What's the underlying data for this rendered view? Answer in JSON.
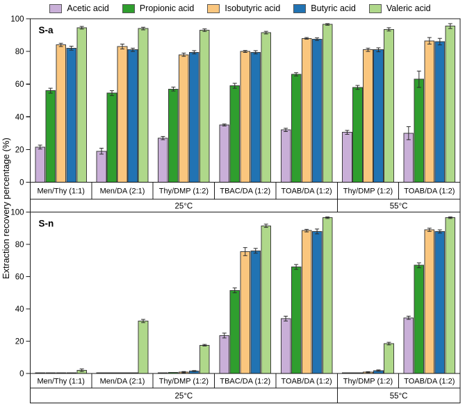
{
  "y_axis": {
    "label": "Extraction recovery percentage (%)",
    "ticks": [
      0,
      20,
      40,
      60,
      80,
      100
    ],
    "ylim": [
      0,
      100
    ]
  },
  "legend": {
    "items": [
      {
        "label": "Acetic acid",
        "color": "#c9afd8"
      },
      {
        "label": "Propionic acid",
        "color": "#2f9e2e"
      },
      {
        "label": "Isobutyric acid",
        "color": "#fac67e"
      },
      {
        "label": "Butyric acid",
        "color": "#2173b3"
      },
      {
        "label": "Valeric acid",
        "color": "#afd88a"
      }
    ]
  },
  "styles": {
    "bar_stroke": "#3c3c3c",
    "frame": "#1a1a1a",
    "error": "#2b2b2b",
    "background": "#ffffff"
  },
  "chart_data": [
    {
      "type": "bar",
      "panel_label": "S-a",
      "ylabel": "Extraction recovery percentage (%)",
      "ylim": [
        0,
        100
      ],
      "grid": false,
      "legend_position": "top",
      "categories": [
        "Men/Thy (1:1)",
        "Men/DA (2:1)",
        "Thy/DMP (1:2)",
        "TBAC/DA (1:2)",
        "TOAB/DA (1:2)",
        "Thy/DMP (1:2)",
        "TOAB/DA (1:2)"
      ],
      "temperature_sections": [
        {
          "label": "25°C",
          "span": 5
        },
        {
          "label": "55°C",
          "span": 2
        }
      ],
      "series": [
        {
          "name": "Acetic acid",
          "values": [
            21.5,
            19,
            27,
            35,
            32,
            30.5,
            30
          ],
          "errors": [
            1.2,
            1.8,
            1,
            0.6,
            1,
            1.2,
            4
          ]
        },
        {
          "name": "Propionic acid",
          "values": [
            56,
            54.5,
            57,
            59,
            66,
            58,
            63
          ],
          "errors": [
            1.5,
            1.5,
            1.2,
            1.5,
            1,
            1.2,
            5
          ]
        },
        {
          "name": "Isobutyric acid",
          "values": [
            84,
            83,
            78,
            80,
            88,
            81,
            86.5
          ],
          "errors": [
            1,
            1.5,
            1,
            0.6,
            0.5,
            1,
            2
          ]
        },
        {
          "name": "Butyric acid",
          "values": [
            82,
            81,
            79.5,
            79.5,
            87.5,
            81,
            86
          ],
          "errors": [
            1.2,
            1,
            1,
            1,
            0.8,
            1.2,
            2
          ]
        },
        {
          "name": "Valeric acid",
          "values": [
            94.5,
            94,
            93,
            91.5,
            96.5,
            93.5,
            95.5
          ],
          "errors": [
            0.8,
            0.8,
            0.8,
            0.8,
            0.5,
            1,
            1.5
          ]
        }
      ]
    },
    {
      "type": "bar",
      "panel_label": "S-n",
      "ylabel": "Extraction recovery percentage (%)",
      "ylim": [
        0,
        100
      ],
      "grid": false,
      "legend_position": "top",
      "categories": [
        "Men/Thy (1:1)",
        "Men/DA (2:1)",
        "Thy/DMP (1:2)",
        "TBAC/DA (1:2)",
        "TOAB/DA (1:2)",
        "Thy/DMP (1:2)",
        "TOAB/DA (1:2)"
      ],
      "temperature_sections": [
        {
          "label": "25°C",
          "span": 5
        },
        {
          "label": "55°C",
          "span": 2
        }
      ],
      "series": [
        {
          "name": "Acetic acid",
          "values": [
            0.5,
            0.4,
            0.5,
            23.5,
            34,
            0.5,
            34.5
          ],
          "errors": [
            0.1,
            0.1,
            0.2,
            1.5,
            1.5,
            0.2,
            1
          ]
        },
        {
          "name": "Propionic acid",
          "values": [
            0.5,
            0.4,
            0.7,
            51.5,
            66,
            0.5,
            67
          ],
          "errors": [
            0.1,
            0.1,
            0.2,
            1.5,
            1.5,
            0.2,
            1.5
          ]
        },
        {
          "name": "Isobutyric acid",
          "values": [
            0.5,
            0.4,
            0.8,
            75.5,
            88.5,
            0.8,
            89
          ],
          "errors": [
            0.1,
            0.1,
            0.4,
            2.5,
            0.8,
            0.3,
            1
          ]
        },
        {
          "name": "Butyric acid",
          "values": [
            0.5,
            0.5,
            1.5,
            76,
            88,
            1.8,
            88
          ],
          "errors": [
            0.1,
            0.1,
            0.3,
            1.5,
            1.5,
            0.4,
            1
          ]
        },
        {
          "name": "Valeric acid",
          "values": [
            2,
            32.5,
            17.5,
            91.5,
            96.5,
            18.5,
            96.5
          ],
          "errors": [
            0.8,
            1,
            0.5,
            1,
            0.5,
            0.8,
            0.5
          ]
        }
      ]
    }
  ]
}
